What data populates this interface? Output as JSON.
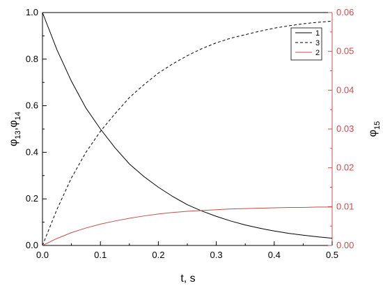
{
  "chart_data": {
    "type": "line",
    "xlabel": "t, s",
    "ylabel_left": {
      "main": "φ",
      "sub1": "13",
      "sep": ",",
      "main2": "φ",
      "sub2": "14"
    },
    "ylabel_right": {
      "main": "φ",
      "sub": "15"
    },
    "xlim": [
      0,
      0.5
    ],
    "ylim_left": [
      0,
      1.0
    ],
    "ylim_right": [
      0,
      0.06
    ],
    "x_ticks": [
      "0.0",
      "0.1",
      "0.2",
      "0.3",
      "0.4",
      "0.5"
    ],
    "y_left_ticks": [
      "0.0",
      "0.2",
      "0.4",
      "0.6",
      "0.8",
      "1.0"
    ],
    "y_right_ticks": [
      "0.00",
      "0.01",
      "0.02",
      "0.03",
      "0.04",
      "0.05",
      "0.06"
    ],
    "grid": false,
    "legend_position": "top-right",
    "legend": [
      {
        "label": "1",
        "style": "solid",
        "color": "#000000"
      },
      {
        "label": "3",
        "style": "dashed",
        "color": "#000000"
      },
      {
        "label": "2",
        "style": "solid",
        "color": "#c0504d"
      }
    ],
    "colors": {
      "left_axis": "#000000",
      "right_axis": "#c0504d"
    },
    "series": [
      {
        "name": "1",
        "axis": "left",
        "style": "solid",
        "color": "#000000",
        "x": [
          0,
          0.025,
          0.05,
          0.075,
          0.1,
          0.125,
          0.15,
          0.175,
          0.2,
          0.225,
          0.25,
          0.275,
          0.3,
          0.325,
          0.35,
          0.375,
          0.4,
          0.425,
          0.45,
          0.475,
          0.5
        ],
        "y": [
          1.0,
          0.84,
          0.705,
          0.59,
          0.5,
          0.42,
          0.35,
          0.296,
          0.25,
          0.21,
          0.175,
          0.148,
          0.125,
          0.105,
          0.088,
          0.074,
          0.062,
          0.052,
          0.044,
          0.037,
          0.031
        ]
      },
      {
        "name": "3",
        "axis": "left",
        "style": "dashed",
        "color": "#000000",
        "x": [
          0,
          0.025,
          0.05,
          0.075,
          0.1,
          0.125,
          0.15,
          0.175,
          0.2,
          0.225,
          0.25,
          0.275,
          0.3,
          0.325,
          0.35,
          0.375,
          0.4,
          0.425,
          0.45,
          0.475,
          0.5
        ],
        "y": [
          0.0,
          0.155,
          0.29,
          0.4,
          0.49,
          0.565,
          0.635,
          0.69,
          0.74,
          0.78,
          0.815,
          0.845,
          0.87,
          0.89,
          0.905,
          0.92,
          0.933,
          0.943,
          0.952,
          0.958,
          0.963
        ]
      },
      {
        "name": "2",
        "axis": "right",
        "style": "solid",
        "color": "#c0504d",
        "x": [
          0,
          0.025,
          0.05,
          0.075,
          0.1,
          0.125,
          0.15,
          0.175,
          0.2,
          0.225,
          0.25,
          0.275,
          0.3,
          0.325,
          0.35,
          0.375,
          0.4,
          0.425,
          0.45,
          0.475,
          0.5
        ],
        "y": [
          0.0,
          0.0018,
          0.0033,
          0.0045,
          0.0055,
          0.0063,
          0.007,
          0.0076,
          0.0081,
          0.0085,
          0.0088,
          0.009,
          0.0092,
          0.0094,
          0.0095,
          0.0096,
          0.0097,
          0.0098,
          0.0098,
          0.0099,
          0.0099
        ]
      }
    ]
  }
}
